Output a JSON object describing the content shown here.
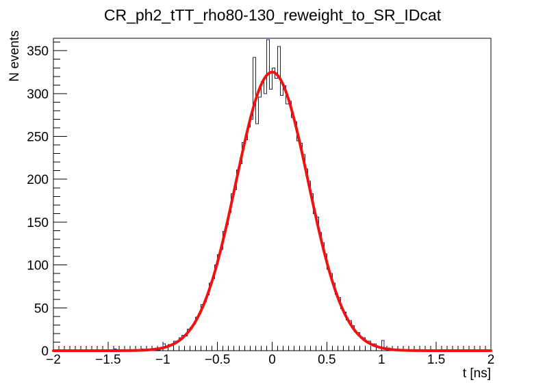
{
  "chart_data": {
    "type": "bar",
    "subtype": "histogram_with_gaussian_fit",
    "title": "CR_ph2_tTT_rho80-130_reweight_to_SR_IDcat",
    "xlabel": "t [ns]",
    "ylabel": "N events",
    "xlim": [
      -2,
      2
    ],
    "ylim": [
      0,
      364.5
    ],
    "grid": false,
    "legend": "none",
    "x_ticks": [
      -2,
      -1.5,
      -1,
      -0.5,
      0,
      0.5,
      1,
      1.5,
      2
    ],
    "x_tick_labels": [
      "−2",
      "−1.5",
      "−1",
      "−0.5",
      "0",
      "0.5",
      "1",
      "1.5",
      "2"
    ],
    "x_minor_step": 0.05,
    "y_ticks": [
      0,
      50,
      100,
      150,
      200,
      250,
      300,
      350
    ],
    "y_tick_labels": [
      "0",
      "50",
      "100",
      "150",
      "200",
      "250",
      "300",
      "350"
    ],
    "y_minor_step": 10,
    "histogram": {
      "bin_start": -2,
      "bin_width": 0.025,
      "n_bins": 160,
      "line_color": "#14149b",
      "line_width": 1,
      "bin_counts": [
        0,
        0,
        0,
        0,
        0,
        0,
        0,
        0,
        0,
        0,
        0,
        0,
        0,
        0,
        0,
        0,
        0,
        0,
        0,
        0,
        0,
        0,
        2,
        0,
        0,
        1,
        0,
        0,
        1,
        0,
        1,
        0,
        2,
        1,
        0,
        1,
        0,
        2,
        1,
        3,
        8,
        4,
        7,
        6,
        11,
        10,
        15,
        18,
        17,
        25,
        27,
        31,
        39,
        43,
        54,
        57,
        65,
        79,
        84,
        100,
        112,
        118,
        139,
        147,
        161,
        183,
        188,
        211,
        218,
        243,
        246,
        261,
        270,
        342,
        265,
        296,
        314,
        300,
        363,
        305,
        330,
        318,
        355,
        298,
        309,
        288,
        291,
        272,
        267,
        245,
        242,
        229,
        212,
        198,
        183,
        160,
        156,
        138,
        126,
        113,
        95,
        90,
        79,
        66,
        62,
        49,
        45,
        36,
        35,
        29,
        22,
        21,
        16,
        15,
        10,
        11,
        7,
        8,
        5,
        3,
        12,
        2,
        3,
        1,
        2,
        1,
        0,
        1,
        0,
        1,
        0,
        1,
        0,
        0,
        1,
        0,
        0,
        0,
        0,
        0,
        0,
        0,
        0,
        0,
        0,
        0,
        0,
        0,
        0,
        0,
        0,
        0,
        0,
        0,
        0,
        0,
        0,
        0,
        0,
        0
      ]
    },
    "fit": {
      "shape": "gaussian",
      "amplitude": 325,
      "mean": 0,
      "sigma": 0.33,
      "range": [
        -2,
        2
      ],
      "line_color": "#f21111",
      "line_width": 4
    },
    "frame_color": "#000000",
    "background_color": "#ffffff"
  }
}
